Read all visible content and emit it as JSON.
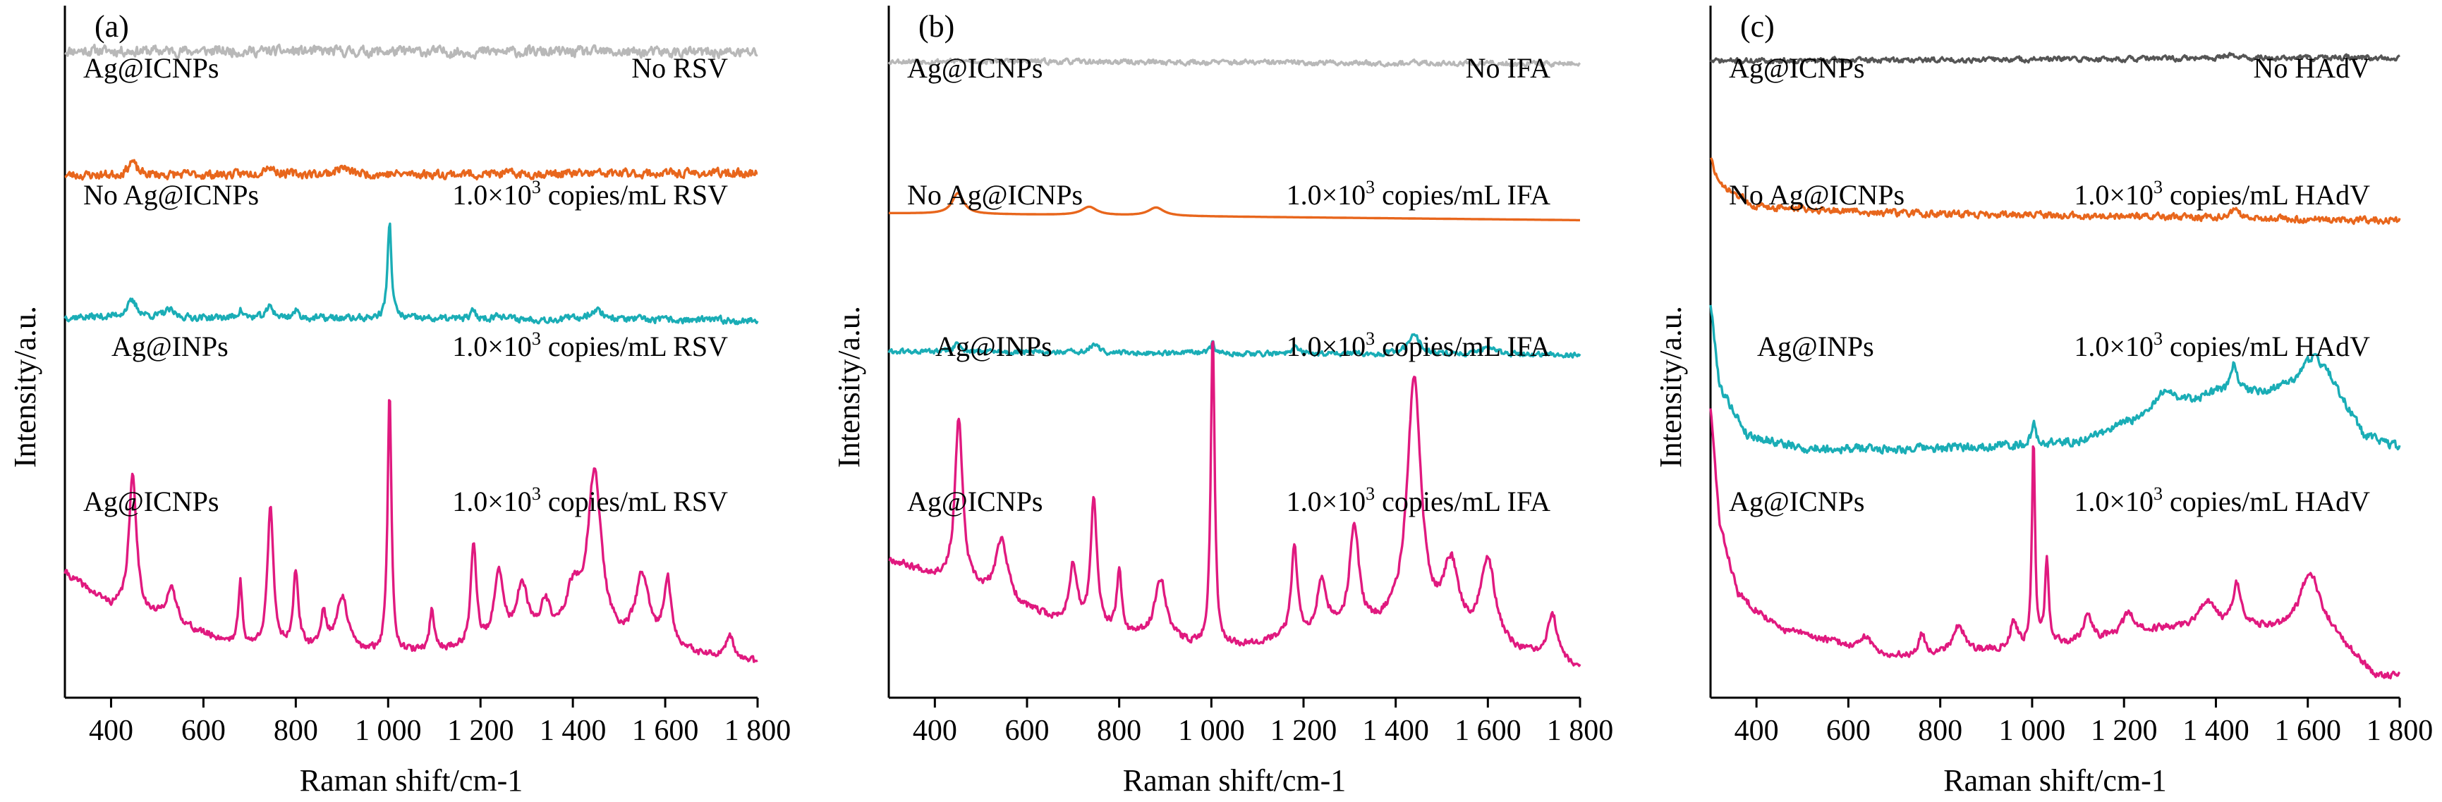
{
  "chart_data": [
    {
      "type": "line",
      "panel_label": "(a)",
      "xlabel": "Raman shift/cm-1",
      "ylabel": "Intensity/a.u.",
      "xlim": [
        300,
        1800
      ],
      "xticks": [
        400,
        600,
        800,
        1000,
        1200,
        1400,
        1600,
        1800
      ],
      "xtick_labels": [
        "400",
        "600",
        "800",
        "1 000",
        "1 200",
        "1 400",
        "1 600",
        "1 800"
      ],
      "yticks": "none",
      "series": [
        {
          "left_label": "Ag@ICNPs",
          "right_label": "No RSV",
          "conc": "",
          "color": "#b8b8b8",
          "style": "noise",
          "base": [
            [
              300,
              0.935
            ],
            [
              1800,
              0.932
            ]
          ],
          "noise": 0.006,
          "peaks": [],
          "seed": 11
        },
        {
          "left_label": "No Ag@ICNPs",
          "right_label": " copies/mL RSV",
          "conc": "1.0×10",
          "color": "#e8661c",
          "style": "noise",
          "base": [
            [
              300,
              0.755
            ],
            [
              1800,
              0.758
            ]
          ],
          "noise": 0.005,
          "peaks": [
            [
              445,
              0.02,
              10
            ],
            [
              740,
              0.012,
              15
            ],
            [
              900,
              0.01,
              15
            ]
          ],
          "seed": 23
        },
        {
          "left_label": "Ag@INPs",
          "right_label": " copies/mL RSV",
          "conc": "1.0×10",
          "color": "#1aadb6",
          "style": "noise",
          "base": [
            [
              300,
              0.55
            ],
            [
              1800,
              0.545
            ]
          ],
          "noise": 0.004,
          "peaks": [
            [
              445,
              0.022,
              15
            ],
            [
              525,
              0.01,
              12
            ],
            [
              680,
              0.012,
              6
            ],
            [
              745,
              0.018,
              8
            ],
            [
              800,
              0.01,
              8
            ],
            [
              1003,
              0.14,
              5
            ],
            [
              1185,
              0.012,
              6
            ],
            [
              1240,
              0.008,
              10
            ],
            [
              1450,
              0.014,
              20
            ]
          ],
          "seed": 37
        },
        {
          "left_label": "Ag@ICNPs",
          "right_label": " copies/mL RSV",
          "conc": "1.0×10",
          "color": "#e0197f",
          "style": "spectrum",
          "base": [
            [
              300,
              0.18
            ],
            [
              400,
              0.13
            ],
            [
              700,
              0.07
            ],
            [
              1000,
              0.06
            ],
            [
              1400,
              0.08
            ],
            [
              1800,
              0.05
            ]
          ],
          "noise": 0.004,
          "peaks": [
            [
              447,
              0.2,
              10
            ],
            [
              530,
              0.05,
              15
            ],
            [
              680,
              0.09,
              5
            ],
            [
              745,
              0.2,
              8
            ],
            [
              800,
              0.11,
              7
            ],
            [
              860,
              0.05,
              8
            ],
            [
              900,
              0.08,
              15
            ],
            [
              1003,
              0.38,
              5
            ],
            [
              1095,
              0.06,
              6
            ],
            [
              1185,
              0.15,
              7
            ],
            [
              1240,
              0.1,
              12
            ],
            [
              1290,
              0.08,
              15
            ],
            [
              1340,
              0.05,
              12
            ],
            [
              1400,
              0.06,
              20
            ],
            [
              1447,
              0.24,
              18
            ],
            [
              1550,
              0.1,
              18
            ],
            [
              1605,
              0.1,
              10
            ],
            [
              1740,
              0.03,
              10
            ]
          ],
          "seed": 41
        }
      ]
    },
    {
      "type": "line",
      "panel_label": "(b)",
      "xlabel": "Raman shift/cm-1",
      "ylabel": "Intensity/a.u.",
      "xlim": [
        300,
        1800
      ],
      "xticks": [
        400,
        600,
        800,
        1000,
        1200,
        1400,
        1600,
        1800
      ],
      "xtick_labels": [
        "400",
        "600",
        "800",
        "1 000",
        "1 200",
        "1 400",
        "1 600",
        "1 800"
      ],
      "yticks": "none",
      "series": [
        {
          "left_label": "Ag@ICNPs",
          "right_label": "No IFA",
          "conc": "",
          "color": "#b8b8b8",
          "style": "noise",
          "base": [
            [
              300,
              0.92
            ],
            [
              1800,
              0.916
            ]
          ],
          "noise": 0.003,
          "peaks": [],
          "seed": 53
        },
        {
          "left_label": "No Ag@ICNPs",
          "right_label": " copies/mL IFA",
          "conc": "1.0×10",
          "color": "#e8661c",
          "style": "smooth",
          "base": [
            [
              300,
              0.7
            ],
            [
              1800,
              0.69
            ]
          ],
          "noise": 0.0,
          "peaks": [
            [
              450,
              0.03,
              15
            ],
            [
              735,
              0.012,
              20
            ],
            [
              880,
              0.012,
              20
            ]
          ],
          "seed": 59
        },
        {
          "left_label": "Ag@INPs",
          "right_label": " copies/mL IFA",
          "conc": "1.0×10",
          "color": "#1aadb6",
          "style": "noise",
          "base": [
            [
              300,
              0.5
            ],
            [
              1800,
              0.495
            ]
          ],
          "noise": 0.003,
          "peaks": [
            [
              450,
              0.012,
              10
            ],
            [
              745,
              0.012,
              10
            ],
            [
              1003,
              0.015,
              5
            ],
            [
              1185,
              0.008,
              10
            ],
            [
              1440,
              0.03,
              15
            ],
            [
              1600,
              0.01,
              20
            ]
          ],
          "seed": 61
        },
        {
          "left_label": "Ag@ICNPs",
          "right_label": " copies/mL IFA",
          "conc": "1.0×10",
          "color": "#e0197f",
          "style": "spectrum",
          "base": [
            [
              300,
              0.2
            ],
            [
              700,
              0.1
            ],
            [
              1000,
              0.07
            ],
            [
              1400,
              0.1
            ],
            [
              1800,
              0.04
            ]
          ],
          "noise": 0.004,
          "peaks": [
            [
              452,
              0.24,
              10
            ],
            [
              545,
              0.09,
              15
            ],
            [
              700,
              0.09,
              10
            ],
            [
              745,
              0.19,
              8
            ],
            [
              800,
              0.09,
              6
            ],
            [
              890,
              0.09,
              15
            ],
            [
              1003,
              0.46,
              5
            ],
            [
              1180,
              0.13,
              8
            ],
            [
              1240,
              0.08,
              12
            ],
            [
              1310,
              0.15,
              12
            ],
            [
              1440,
              0.36,
              18
            ],
            [
              1520,
              0.1,
              20
            ],
            [
              1600,
              0.12,
              20
            ],
            [
              1740,
              0.07,
              12
            ]
          ],
          "seed": 67
        }
      ]
    },
    {
      "type": "line",
      "panel_label": "(c)",
      "xlabel": "Raman shift/cm-1",
      "ylabel": "Intensity/a.u.",
      "xlim": [
        300,
        1800
      ],
      "xticks": [
        400,
        600,
        800,
        1000,
        1200,
        1400,
        1600,
        1800
      ],
      "xtick_labels": [
        "400",
        "600",
        "800",
        "1 000",
        "1 200",
        "1 400",
        "1 600",
        "1 800"
      ],
      "yticks": "none",
      "series": [
        {
          "left_label": "Ag@ICNPs",
          "right_label": "No HAdV",
          "conc": "",
          "color": "#555555",
          "style": "noise",
          "base": [
            [
              300,
              0.92
            ],
            [
              1800,
              0.925
            ]
          ],
          "noise": 0.003,
          "peaks": [
            [
              1430,
              0.006,
              15
            ]
          ],
          "seed": 71
        },
        {
          "left_label": "No Ag@ICNPs",
          "right_label": " copies/mL HAdV",
          "conc": "1.0×10",
          "color": "#e8661c",
          "style": "noise",
          "base": [
            [
              300,
              0.78
            ],
            [
              320,
              0.74
            ],
            [
              400,
              0.71
            ],
            [
              700,
              0.7
            ],
            [
              1800,
              0.69
            ]
          ],
          "noise": 0.004,
          "peaks": [
            [
              1440,
              0.012,
              10
            ]
          ],
          "seed": 73
        },
        {
          "left_label": "Ag@INPs",
          "right_label": " copies/mL HAdV",
          "conc": "1.0×10",
          "color": "#1aadb6",
          "style": "noise",
          "base": [
            [
              300,
              0.57
            ],
            [
              320,
              0.45
            ],
            [
              380,
              0.38
            ],
            [
              500,
              0.36
            ],
            [
              800,
              0.36
            ],
            [
              1100,
              0.37
            ],
            [
              1300,
              0.42
            ],
            [
              1400,
              0.44
            ],
            [
              1500,
              0.44
            ],
            [
              1640,
              0.47
            ],
            [
              1720,
              0.38
            ],
            [
              1800,
              0.36
            ]
          ],
          "noise": 0.005,
          "peaks": [
            [
              1003,
              0.03,
              5
            ],
            [
              1290,
              0.03,
              20
            ],
            [
              1440,
              0.04,
              10
            ],
            [
              1610,
              0.03,
              20
            ]
          ],
          "seed": 79
        },
        {
          "left_label": "Ag@ICNPs",
          "right_label": " copies/mL HAdV",
          "conc": "1.0×10",
          "color": "#e0197f",
          "style": "spectrum",
          "base": [
            [
              300,
              0.42
            ],
            [
              320,
              0.25
            ],
            [
              360,
              0.15
            ],
            [
              450,
              0.1
            ],
            [
              700,
              0.06
            ],
            [
              1000,
              0.07
            ],
            [
              1300,
              0.1
            ],
            [
              1500,
              0.1
            ],
            [
              1650,
              0.09
            ],
            [
              1750,
              0.03
            ],
            [
              1800,
              0.03
            ]
          ],
          "noise": 0.004,
          "peaks": [
            [
              640,
              0.02,
              10
            ],
            [
              760,
              0.03,
              8
            ],
            [
              840,
              0.04,
              15
            ],
            [
              960,
              0.04,
              10
            ],
            [
              1003,
              0.3,
              4
            ],
            [
              1032,
              0.12,
              5
            ],
            [
              1120,
              0.04,
              10
            ],
            [
              1210,
              0.03,
              15
            ],
            [
              1380,
              0.04,
              20
            ],
            [
              1445,
              0.06,
              10
            ],
            [
              1605,
              0.09,
              25
            ]
          ],
          "seed": 83
        }
      ]
    }
  ]
}
